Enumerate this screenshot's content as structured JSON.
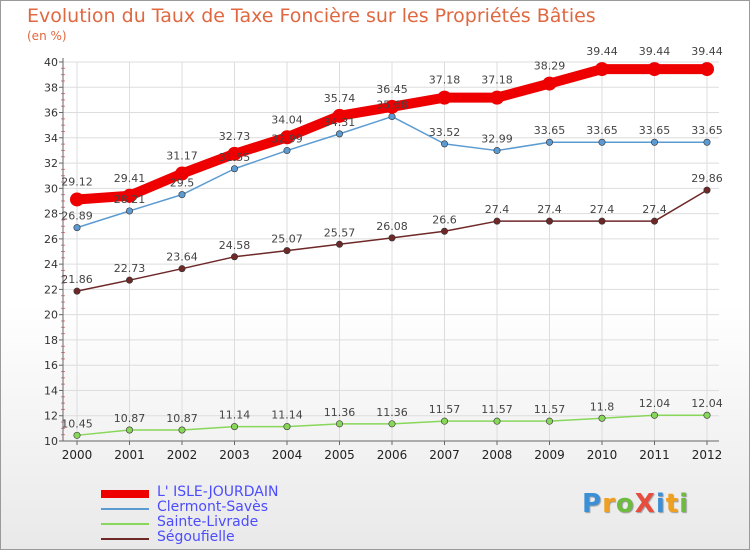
{
  "title": "Evolution du Taux de Taxe Foncière sur les Propriétés Bâties",
  "unit_label": "(en %)",
  "logo": {
    "text": "ProXiti",
    "letters": [
      {
        "ch": "P",
        "color": "#3b8fd6"
      },
      {
        "ch": "r",
        "color": "#f0a020"
      },
      {
        "ch": "o",
        "color": "#6dbb3f"
      },
      {
        "ch": "X",
        "color": "#e84c3d"
      },
      {
        "ch": "i",
        "color": "#3b8fd6"
      },
      {
        "ch": "t",
        "color": "#f0a020"
      },
      {
        "ch": "i",
        "color": "#6dbb3f"
      }
    ]
  },
  "chart_data": {
    "type": "line",
    "title": "Evolution du Taux de Taxe Foncière sur les Propriétés Bâties",
    "ylabel": "(en %)",
    "xlabel": "",
    "x": [
      "2000",
      "2001",
      "2002",
      "2003",
      "2004",
      "2005",
      "2006",
      "2007",
      "2008",
      "2009",
      "2010",
      "2011",
      "2012"
    ],
    "ylim": [
      10,
      40
    ],
    "yticks": [
      10,
      12,
      14,
      16,
      18,
      20,
      22,
      24,
      26,
      28,
      30,
      32,
      34,
      36,
      38,
      40
    ],
    "grid": true,
    "legend_position": "bottom-left",
    "series": [
      {
        "name": "L' ISLE-JOURDAIN",
        "color": "#ee0000",
        "emphasis": true,
        "values": [
          29.12,
          29.41,
          31.17,
          32.73,
          34.04,
          35.74,
          36.45,
          37.18,
          37.18,
          38.29,
          39.44,
          39.44,
          39.44
        ]
      },
      {
        "name": "Clermont-Savès",
        "color": "#5c9bd1",
        "emphasis": false,
        "values": [
          26.89,
          28.21,
          29.5,
          31.55,
          32.99,
          34.31,
          35.68,
          33.52,
          32.99,
          33.65,
          33.65,
          33.65,
          33.65
        ]
      },
      {
        "name": "Sainte-Livrade",
        "color": "#88d65a",
        "emphasis": false,
        "values": [
          10.45,
          10.87,
          10.87,
          11.14,
          11.14,
          11.36,
          11.36,
          11.57,
          11.57,
          11.57,
          11.8,
          12.04,
          12.04
        ]
      },
      {
        "name": "Ségoufielle",
        "color": "#6e2828",
        "emphasis": false,
        "values": [
          21.86,
          22.73,
          23.64,
          24.58,
          25.07,
          25.57,
          26.08,
          26.6,
          27.4,
          27.4,
          27.4,
          27.4,
          29.86
        ]
      }
    ],
    "data_labels": [
      [
        "29.12",
        "29.41",
        "31.17",
        "32.73",
        "34.04",
        "35.74",
        "36.45",
        "37.18",
        "37.18",
        "38.29",
        "39.44",
        "39.44",
        "39.44"
      ],
      [
        "26.89",
        "28.21",
        "29.5",
        "31.55",
        "32.99",
        "34.31",
        "35.68",
        "33.52",
        "32.99",
        "33.65",
        "33.65",
        "33.65",
        "33.65"
      ],
      [
        "10.45",
        "10.87",
        "10.87",
        "11.14",
        "11.14",
        "11.36",
        "11.36",
        "11.57",
        "11.57",
        "11.57",
        "11.8",
        "12.04",
        "12.04"
      ],
      [
        "21.86",
        "22.73",
        "23.64",
        "24.58",
        "25.07",
        "25.57",
        "26.08",
        "26.6",
        "27.4",
        "27.4",
        "27.4",
        "27.4",
        "29.86"
      ]
    ]
  }
}
